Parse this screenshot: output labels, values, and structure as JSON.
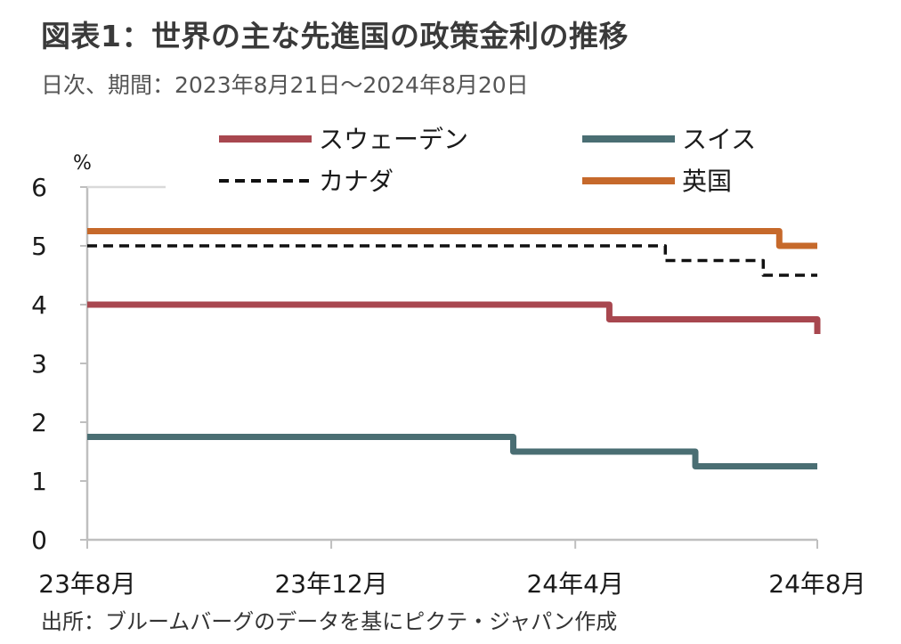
{
  "title": "図表1：世界の主な先進国の政策金利の推移",
  "subtitle": "日次、期間：2023年8月21日～2024年8月20日",
  "source": "出所：ブルームバーグのデータを基にピクテ・ジャパン作成",
  "chart_data": {
    "type": "line",
    "title": "図表1：世界の主な先進国の政策金利の推移",
    "subtitle": "日次、期間：2023年8月21日～2024年8月20日",
    "y_unit": "%",
    "ylim": [
      0,
      6
    ],
    "y_ticks": [
      "0",
      "1",
      "2",
      "3",
      "4",
      "5",
      "6"
    ],
    "x_range": [
      "2023-08-21",
      "2024-08-20"
    ],
    "x_ticks": [
      {
        "date": "2023-08-21",
        "label": "23年8月"
      },
      {
        "date": "2023-12-21",
        "label": "23年12月"
      },
      {
        "date": "2024-04-21",
        "label": "24年4月"
      },
      {
        "date": "2024-08-20",
        "label": "24年8月"
      }
    ],
    "grid": false,
    "legend_position": "top",
    "series": [
      {
        "name": "スウェーデン",
        "color": "#a8474f",
        "style": "solid",
        "steps": [
          {
            "from": "2023-08-21",
            "value": 4.0
          },
          {
            "from": "2024-05-08",
            "value": 3.75
          },
          {
            "from": "2024-08-20",
            "value": 3.5
          }
        ]
      },
      {
        "name": "スイス",
        "color": "#4a6e73",
        "style": "solid",
        "steps": [
          {
            "from": "2023-08-21",
            "value": 1.75
          },
          {
            "from": "2024-03-21",
            "value": 1.5
          },
          {
            "from": "2024-06-20",
            "value": 1.25
          }
        ]
      },
      {
        "name": "カナダ",
        "color": "#111111",
        "style": "dashed",
        "steps": [
          {
            "from": "2023-08-21",
            "value": 5.0
          },
          {
            "from": "2024-06-05",
            "value": 4.75
          },
          {
            "from": "2024-07-24",
            "value": 4.5
          }
        ]
      },
      {
        "name": "英国",
        "color": "#c6692b",
        "style": "solid",
        "steps": [
          {
            "from": "2023-08-21",
            "value": 5.25
          },
          {
            "from": "2024-08-01",
            "value": 5.0
          }
        ]
      }
    ]
  }
}
